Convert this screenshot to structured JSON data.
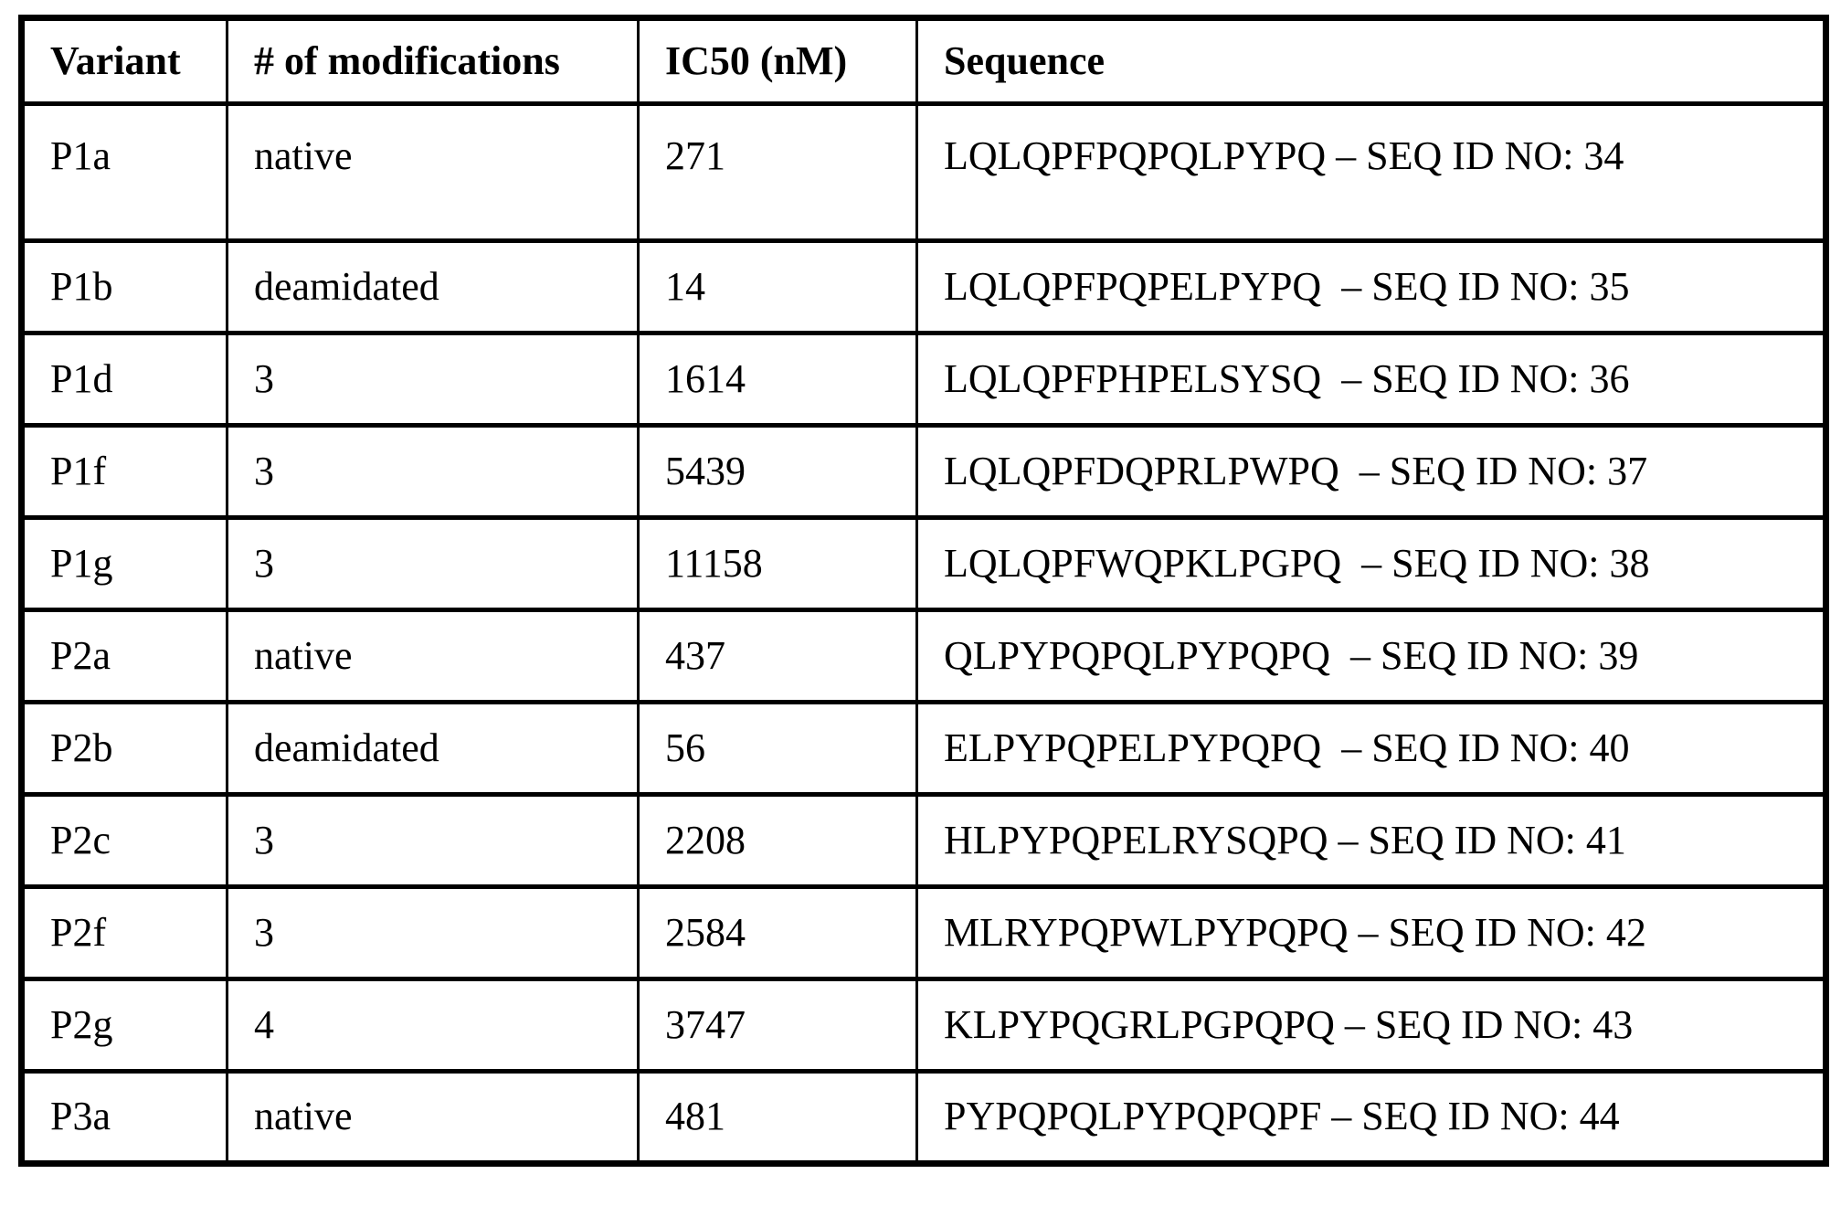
{
  "table": {
    "columns": {
      "variant": "Variant",
      "modifications": "# of modifications",
      "ic50": "IC50 (nM)",
      "sequence": "Sequence"
    },
    "rows": [
      {
        "variant": "P1a",
        "modifications": "native",
        "ic50": "271",
        "sequence": "LQLQPFPQPQLPYPQ – SEQ ID NO: 34"
      },
      {
        "variant": "P1b",
        "modifications": "deamidated",
        "ic50": "14",
        "sequence": "LQLQPFPQPELPYPQ  – SEQ ID NO: 35"
      },
      {
        "variant": "P1d",
        "modifications": "3",
        "ic50": "1614",
        "sequence": "LQLQPFPHPELSYSQ  – SEQ ID NO: 36"
      },
      {
        "variant": "P1f",
        "modifications": "3",
        "ic50": "5439",
        "sequence": "LQLQPFDQPRLPWPQ  – SEQ ID NO: 37"
      },
      {
        "variant": "P1g",
        "modifications": "3",
        "ic50": "11158",
        "sequence": "LQLQPFWQPKLPGPQ  – SEQ ID NO: 38"
      },
      {
        "variant": "P2a",
        "modifications": "native",
        "ic50": "437",
        "sequence": "QLPYPQPQLPYPQPQ  – SEQ ID NO: 39"
      },
      {
        "variant": "P2b",
        "modifications": "deamidated",
        "ic50": "56",
        "sequence": "ELPYPQPELPYPQPQ  – SEQ ID NO: 40"
      },
      {
        "variant": "P2c",
        "modifications": "3",
        "ic50": "2208",
        "sequence": "HLPYPQPELRYSQPQ – SEQ ID NO: 41"
      },
      {
        "variant": "P2f",
        "modifications": "3",
        "ic50": "2584",
        "sequence": "MLRYPQPWLPYPQPQ – SEQ ID NO: 42"
      },
      {
        "variant": "P2g",
        "modifications": "4",
        "ic50": "3747",
        "sequence": "KLPYPQGRLPGPQPQ – SEQ ID NO: 43"
      },
      {
        "variant": "P3a",
        "modifications": "native",
        "ic50": "481",
        "sequence": "PYPQPQLPYPQPQPF – SEQ ID NO: 44"
      }
    ]
  }
}
